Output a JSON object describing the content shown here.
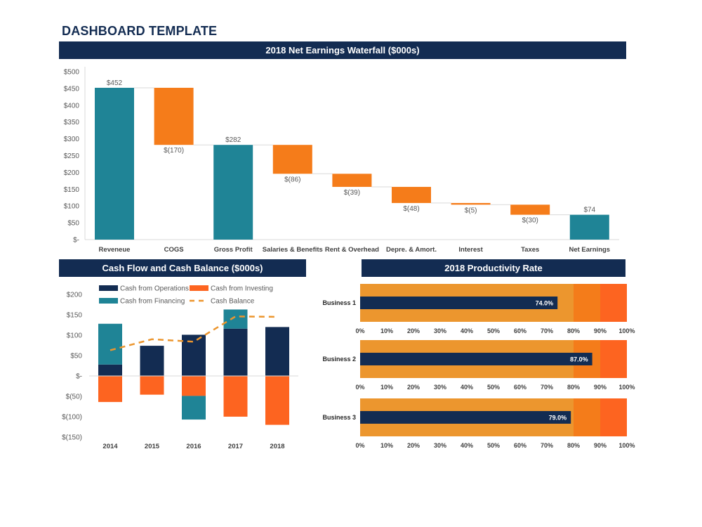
{
  "page_title": "DASHBOARD TEMPLATE",
  "colors": {
    "navy": "#132c52",
    "teal": "#1f8496",
    "orange": "#f57c1a",
    "orange_dark": "#fd6420",
    "band_light": "#ec962e",
    "band_mid": "#f47c1a",
    "band_dark": "#fd6420",
    "cash_balance": "#ec962e"
  },
  "chart_data": [
    {
      "type": "bar",
      "subtype": "waterfall",
      "title": "2018 Net Earnings Waterfall ($000s)",
      "categories": [
        "Reveneue",
        "COGS",
        "Gross Profit",
        "Salaries & Benefits",
        "Rent & Overhead",
        "Depre. & Amort.",
        "Interest",
        "Taxes",
        "Net Earnings"
      ],
      "values": [
        452,
        -170,
        282,
        -86,
        -39,
        -48,
        -5,
        -30,
        74
      ],
      "kinds": [
        "total",
        "delta",
        "total",
        "delta",
        "delta",
        "delta",
        "delta",
        "delta",
        "total"
      ],
      "data_labels": [
        "$452",
        "$(170)",
        "$282",
        "$(86)",
        "$(39)",
        "$(48)",
        "$(5)",
        "$(30)",
        "$74"
      ],
      "yticks": [
        "$-",
        "$50",
        "$100",
        "$150",
        "$200",
        "$250",
        "$300",
        "$350",
        "$400",
        "$450",
        "$500"
      ],
      "ylim": [
        0,
        500
      ],
      "grid": false
    },
    {
      "type": "bar",
      "subtype": "stacked-with-line",
      "title": "Cash Flow and Cash Balance ($000s)",
      "categories": [
        "2014",
        "2015",
        "2016",
        "2017",
        "2018"
      ],
      "series": [
        {
          "name": "Cash from Operations",
          "values": [
            28,
            74,
            101,
            116,
            120
          ],
          "color": "#132c52"
        },
        {
          "name": "Cash from Investing",
          "values": [
            -64,
            -46,
            -49,
            -100,
            -120
          ],
          "color": "#fd6420"
        },
        {
          "name": "Cash from Financing",
          "values": [
            100,
            0,
            -58,
            47,
            0
          ],
          "color": "#1f8496"
        },
        {
          "name": "Cash Balance",
          "values": [
            63,
            90,
            84,
            146,
            145
          ],
          "color": "#ec962e",
          "style": "dashed-line"
        }
      ],
      "yticks": [
        "$(150)",
        "$(100)",
        "$(50)",
        "$-",
        "$50",
        "$100",
        "$150",
        "$200"
      ],
      "ylim": [
        -150,
        200
      ],
      "legend": "top",
      "grid": false
    },
    {
      "type": "bar",
      "subtype": "bullet",
      "title": "2018 Productivity Rate",
      "categories": [
        "Business 1",
        "Business 2",
        "Business 3"
      ],
      "values": [
        74.0,
        87.0,
        79.0
      ],
      "data_labels": [
        "74.0%",
        "87.0%",
        "79.0%"
      ],
      "bands": [
        80,
        90,
        100
      ],
      "xticks": [
        "0%",
        "10%",
        "20%",
        "30%",
        "40%",
        "50%",
        "60%",
        "70%",
        "80%",
        "90%",
        "100%"
      ],
      "xlim": [
        0,
        100
      ]
    }
  ]
}
